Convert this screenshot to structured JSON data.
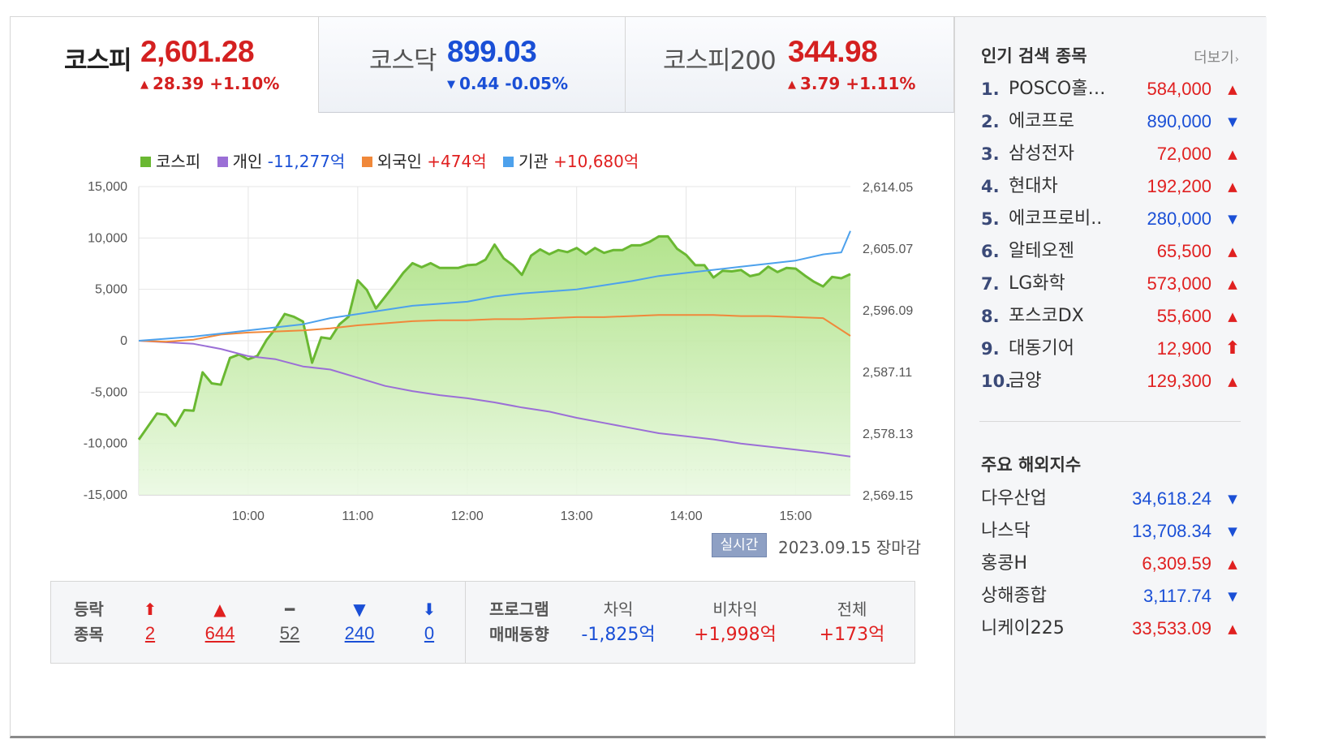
{
  "indices": [
    {
      "name": "코스피",
      "value": "2,601.28",
      "dir": "up",
      "arrow": "▲",
      "change": "28.39 +1.10%",
      "active": true
    },
    {
      "name": "코스닥",
      "value": "899.03",
      "dir": "down",
      "arrow": "▼",
      "change": "0.44 -0.05%",
      "active": false
    },
    {
      "name": "코스피200",
      "value": "344.98",
      "dir": "up",
      "arrow": "▲",
      "change": "3.79 +1.11%",
      "active": false
    }
  ],
  "legend": [
    {
      "label": "코스피",
      "value": "",
      "color": "#6ab832",
      "dir": ""
    },
    {
      "label": "개인",
      "value": "-11,277억",
      "color": "#9b6fd6",
      "dir": "neg"
    },
    {
      "label": "외국인",
      "value": "+474억",
      "color": "#f0883a",
      "dir": "pos"
    },
    {
      "label": "기관",
      "value": "+10,680억",
      "color": "#4da1ec",
      "dir": "pos"
    }
  ],
  "chart_data": {
    "type": "line",
    "title": "",
    "x_ticks": [
      "10:00",
      "11:00",
      "12:00",
      "13:00",
      "14:00",
      "15:00"
    ],
    "y_left_ticks": [
      "15,000",
      "10,000",
      "5,000",
      "0",
      "-5,000",
      "-10,000",
      "-15,000"
    ],
    "y_left_range": [
      -15000,
      15000
    ],
    "y_right_ticks": [
      "2,614.05",
      "2,605.07",
      "2,596.09",
      "2,587.11",
      "2,578.13",
      "2,569.15"
    ],
    "y_right_range": [
      2569.15,
      2614.05
    ],
    "grid": true,
    "legend_position": "top-left",
    "series": [
      {
        "name": "코스피",
        "axis": "right",
        "color": "#6ab832",
        "area": true,
        "x": [
          "09:00",
          "09:10",
          "09:15",
          "09:20",
          "09:25",
          "09:30",
          "09:35",
          "09:40",
          "09:45",
          "09:50",
          "09:55",
          "10:00",
          "10:05",
          "10:10",
          "10:15",
          "10:20",
          "10:25",
          "10:30",
          "10:35",
          "10:40",
          "10:45",
          "10:50",
          "10:55",
          "11:00",
          "11:05",
          "11:10",
          "11:15",
          "11:20",
          "11:25",
          "11:30",
          "11:35",
          "11:40",
          "11:45",
          "11:50",
          "11:55",
          "12:00",
          "12:05",
          "12:10",
          "12:15",
          "12:20",
          "12:25",
          "12:30",
          "12:35",
          "12:40",
          "12:45",
          "12:50",
          "12:55",
          "13:00",
          "13:05",
          "13:10",
          "13:15",
          "13:20",
          "13:25",
          "13:30",
          "13:35",
          "13:40",
          "13:45",
          "13:50",
          "13:55",
          "14:00",
          "14:05",
          "14:10",
          "14:15",
          "14:20",
          "14:25",
          "14:30",
          "14:35",
          "14:40",
          "14:45",
          "14:50",
          "14:55",
          "15:00",
          "15:05",
          "15:10",
          "15:15",
          "15:20",
          "15:25",
          "15:30"
        ],
        "values": [
          2577.2,
          2581.0,
          2580.8,
          2579.2,
          2581.5,
          2581.4,
          2587.0,
          2585.4,
          2585.2,
          2589.1,
          2589.6,
          2588.9,
          2589.4,
          2591.7,
          2593.4,
          2595.5,
          2595.1,
          2594.4,
          2588.4,
          2592.1,
          2591.9,
          2594.0,
          2595.1,
          2600.4,
          2599.0,
          2596.3,
          2598.0,
          2599.7,
          2601.5,
          2602.9,
          2602.3,
          2602.9,
          2602.2,
          2602.2,
          2602.2,
          2602.6,
          2602.7,
          2603.4,
          2605.6,
          2603.6,
          2602.6,
          2601.2,
          2604.0,
          2604.9,
          2604.2,
          2604.8,
          2604.5,
          2605.1,
          2604.2,
          2605.1,
          2604.4,
          2604.8,
          2604.8,
          2605.5,
          2605.5,
          2606.0,
          2606.8,
          2606.8,
          2605.0,
          2604.1,
          2602.6,
          2602.6,
          2600.8,
          2601.8,
          2601.7,
          2601.9,
          2601.0,
          2601.3,
          2602.4,
          2601.6,
          2602.2,
          2602.1,
          2601.1,
          2600.2,
          2599.5,
          2600.9,
          2600.7,
          2601.3
        ]
      },
      {
        "name": "개인",
        "axis": "left",
        "color": "#9b6fd6",
        "x": [
          "09:00",
          "09:30",
          "09:45",
          "10:00",
          "10:15",
          "10:30",
          "10:45",
          "11:00",
          "11:15",
          "11:30",
          "11:45",
          "12:00",
          "12:15",
          "12:30",
          "12:45",
          "13:00",
          "13:15",
          "13:30",
          "13:45",
          "14:00",
          "14:15",
          "14:30",
          "14:45",
          "15:00",
          "15:15",
          "15:30"
        ],
        "values": [
          0,
          -300,
          -800,
          -1500,
          -1800,
          -2500,
          -2800,
          -3600,
          -4400,
          -4900,
          -5300,
          -5600,
          -6000,
          -6500,
          -6900,
          -7500,
          -8000,
          -8500,
          -9000,
          -9300,
          -9600,
          -10000,
          -10300,
          -10600,
          -10900,
          -11277
        ]
      },
      {
        "name": "외국인",
        "axis": "left",
        "color": "#f0883a",
        "x": [
          "09:00",
          "09:15",
          "09:30",
          "09:45",
          "10:00",
          "10:15",
          "10:30",
          "10:45",
          "11:00",
          "11:15",
          "11:30",
          "11:45",
          "12:00",
          "12:15",
          "12:30",
          "12:45",
          "13:00",
          "13:15",
          "13:30",
          "13:45",
          "14:00",
          "14:15",
          "14:30",
          "14:45",
          "15:00",
          "15:15",
          "15:30"
        ],
        "values": [
          0,
          -100,
          100,
          600,
          800,
          900,
          1000,
          1200,
          1500,
          1700,
          1900,
          2000,
          2000,
          2100,
          2100,
          2200,
          2300,
          2300,
          2400,
          2500,
          2500,
          2500,
          2400,
          2400,
          2300,
          2200,
          474
        ]
      },
      {
        "name": "기관",
        "axis": "left",
        "color": "#4da1ec",
        "x": [
          "09:00",
          "09:15",
          "09:30",
          "09:45",
          "10:00",
          "10:15",
          "10:30",
          "10:45",
          "11:00",
          "11:15",
          "11:30",
          "11:45",
          "12:00",
          "12:15",
          "12:30",
          "12:45",
          "13:00",
          "13:15",
          "13:30",
          "13:45",
          "14:00",
          "14:15",
          "14:30",
          "14:45",
          "15:00",
          "15:15",
          "15:25",
          "15:30"
        ],
        "values": [
          0,
          200,
          400,
          700,
          1000,
          1300,
          1600,
          2200,
          2600,
          3000,
          3400,
          3600,
          3800,
          4300,
          4600,
          4800,
          5000,
          5400,
          5800,
          6300,
          6600,
          6900,
          7200,
          7500,
          7800,
          8400,
          8600,
          10680
        ]
      }
    ]
  },
  "chart_footer": {
    "badge": "실시간",
    "date": "2023.09.15 장마감"
  },
  "rise_fall": {
    "label_line1": "등락",
    "label_line2": "종목",
    "items": [
      {
        "icon": "limit-up-icon",
        "glyph": "⬆",
        "count": "2",
        "color": "#e02020"
      },
      {
        "icon": "up-triangle-icon",
        "glyph": "▲",
        "count": "644",
        "color": "#e02020"
      },
      {
        "icon": "flat-dash-icon",
        "glyph": "━",
        "count": "52",
        "color": "#555555"
      },
      {
        "icon": "down-triangle-icon",
        "glyph": "▼",
        "count": "240",
        "color": "#1a4fd6"
      },
      {
        "icon": "limit-down-icon",
        "glyph": "⬇",
        "count": "0",
        "color": "#1a4fd6"
      }
    ]
  },
  "program": {
    "label_line1": "프로그램",
    "label_line2": "매매동향",
    "items": [
      {
        "header": "차익",
        "value": "-1,825억",
        "color": "#1a4fd6"
      },
      {
        "header": "비차익",
        "value": "+1,998억",
        "color": "#e02020"
      },
      {
        "header": "전체",
        "value": "+173억",
        "color": "#e02020"
      }
    ]
  },
  "popular": {
    "title": "인기 검색 종목",
    "more": "더보기",
    "items": [
      {
        "rank": "1.",
        "name": "POSCO홀…",
        "price": "584,000",
        "icon": "up-triangle-icon",
        "arrow": "▲",
        "dir": "up"
      },
      {
        "rank": "2.",
        "name": "에코프로",
        "price": "890,000",
        "icon": "down-triangle-icon",
        "arrow": "▼",
        "dir": "dn"
      },
      {
        "rank": "3.",
        "name": "삼성전자",
        "price": "72,000",
        "icon": "up-triangle-icon",
        "arrow": "▲",
        "dir": "up"
      },
      {
        "rank": "4.",
        "name": "현대차",
        "price": "192,200",
        "icon": "up-triangle-icon",
        "arrow": "▲",
        "dir": "up"
      },
      {
        "rank": "5.",
        "name": "에코프로비..",
        "price": "280,000",
        "icon": "down-triangle-icon",
        "arrow": "▼",
        "dir": "dn"
      },
      {
        "rank": "6.",
        "name": "알테오젠",
        "price": "65,500",
        "icon": "up-triangle-icon",
        "arrow": "▲",
        "dir": "up"
      },
      {
        "rank": "7.",
        "name": "LG화학",
        "price": "573,000",
        "icon": "up-triangle-icon",
        "arrow": "▲",
        "dir": "up"
      },
      {
        "rank": "8.",
        "name": "포스코DX",
        "price": "55,600",
        "icon": "up-triangle-icon",
        "arrow": "▲",
        "dir": "up"
      },
      {
        "rank": "9.",
        "name": "대동기어",
        "price": "12,900",
        "icon": "limit-up-icon",
        "arrow": "⬆",
        "dir": "up"
      },
      {
        "rank": "10.",
        "name": "금양",
        "price": "129,300",
        "icon": "up-triangle-icon",
        "arrow": "▲",
        "dir": "up"
      }
    ]
  },
  "global": {
    "title": "주요 해외지수",
    "items": [
      {
        "name": "다우산업",
        "value": "34,618.24",
        "icon": "down-triangle-icon",
        "arrow": "▼",
        "dir": "dn"
      },
      {
        "name": "나스닥",
        "value": "13,708.34",
        "icon": "down-triangle-icon",
        "arrow": "▼",
        "dir": "dn"
      },
      {
        "name": "홍콩H",
        "value": "6,309.59",
        "icon": "up-triangle-icon",
        "arrow": "▲",
        "dir": "up"
      },
      {
        "name": "상해종합",
        "value": "3,117.74",
        "icon": "down-triangle-icon",
        "arrow": "▼",
        "dir": "dn"
      },
      {
        "name": "니케이225",
        "value": "33,533.09",
        "icon": "up-triangle-icon",
        "arrow": "▲",
        "dir": "up"
      }
    ]
  },
  "colors": {
    "up": "#e02020",
    "down": "#1a4fd6",
    "kospi_fill_top": "#a6df7a",
    "kospi_fill_bottom": "#eaf9e2"
  }
}
